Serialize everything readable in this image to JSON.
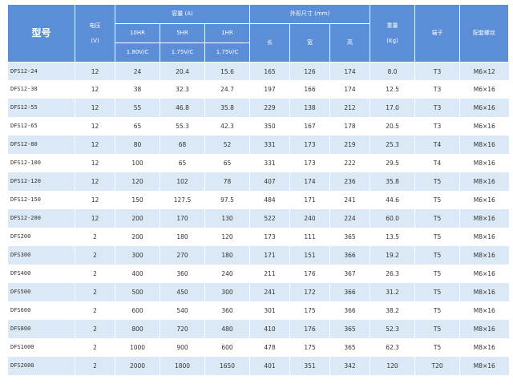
{
  "header": {
    "model": "型号",
    "voltage": "电压",
    "voltage_unit": "(V)",
    "capacity": "容量 (A)",
    "dimensions": "外形尺寸 (mm)",
    "weight": "重量",
    "weight_unit": "(Kg)",
    "terminal": "端子",
    "bolt": "配套螺丝",
    "rate_10": "10HR",
    "rate_5": "5HR",
    "rate_1": "1HR",
    "voltage_10": "1.80V/C",
    "voltage_5": "1.75V/C",
    "voltage_1": "1.75V/C",
    "length": "长",
    "width": "宽",
    "height": "高"
  },
  "rows": [
    [
      "DFS12-24",
      "12",
      "24",
      "20.4",
      "15.6",
      "165",
      "126",
      "174",
      "8.0",
      "T3",
      "M6×12"
    ],
    [
      "DFS12-38",
      "12",
      "38",
      "32.3",
      "24.7",
      "197",
      "166",
      "174",
      "12.5",
      "T3",
      "M6×16"
    ],
    [
      "DFS12-55",
      "12",
      "55",
      "46.8",
      "35.8",
      "229",
      "138",
      "212",
      "17.0",
      "T3",
      "M6×16"
    ],
    [
      "DFS12-65",
      "12",
      "65",
      "55.3",
      "42.3",
      "350",
      "167",
      "178",
      "20.5",
      "T3",
      "M6×16"
    ],
    [
      "DFS12-80",
      "12",
      "80",
      "68",
      "52",
      "331",
      "173",
      "219",
      "25.3",
      "T4",
      "M8×16"
    ],
    [
      "DFS12-100",
      "12",
      "100",
      "65",
      "65",
      "331",
      "173",
      "222",
      "29.5",
      "T4",
      "M8×16"
    ],
    [
      "DFS12-120",
      "12",
      "120",
      "102",
      "78",
      "407",
      "174",
      "236",
      "35.8",
      "T5",
      "M8×16"
    ],
    [
      "DFS12-150",
      "12",
      "150",
      "127.5",
      "97.5",
      "484",
      "171",
      "241",
      "44.6",
      "T5",
      "M6×16"
    ],
    [
      "DFS12-200",
      "12",
      "200",
      "170",
      "130",
      "522",
      "240",
      "224",
      "60.0",
      "T5",
      "M8×16"
    ],
    [
      "DFS200",
      "2",
      "200",
      "180",
      "120",
      "173",
      "111",
      "365",
      "13.5",
      "T5",
      "M8×16"
    ],
    [
      "DFS300",
      "2",
      "300",
      "270",
      "180",
      "171",
      "151",
      "366",
      "19.2",
      "T5",
      "M8×16"
    ],
    [
      "DFS400",
      "2",
      "400",
      "360",
      "240",
      "211",
      "176",
      "367",
      "26.3",
      "T5",
      "M6×16"
    ],
    [
      "DFS500",
      "2",
      "500",
      "450",
      "300",
      "241",
      "172",
      "366",
      "31.2",
      "T5",
      "M8×16"
    ],
    [
      "DFS600",
      "2",
      "600",
      "540",
      "360",
      "301",
      "175",
      "366",
      "38.2",
      "T5",
      "M8×16"
    ],
    [
      "DFS800",
      "2",
      "800",
      "720",
      "480",
      "410",
      "176",
      "365",
      "52.3",
      "T5",
      "M8×16"
    ],
    [
      "DFS1000",
      "2",
      "1000",
      "900",
      "600",
      "478",
      "175",
      "365",
      "62.3",
      "T5",
      "M8×16"
    ],
    [
      "DFS2000",
      "2",
      "2000",
      "1800",
      "1650",
      "401",
      "351",
      "342",
      "120",
      "T20",
      "M8×16"
    ]
  ]
}
